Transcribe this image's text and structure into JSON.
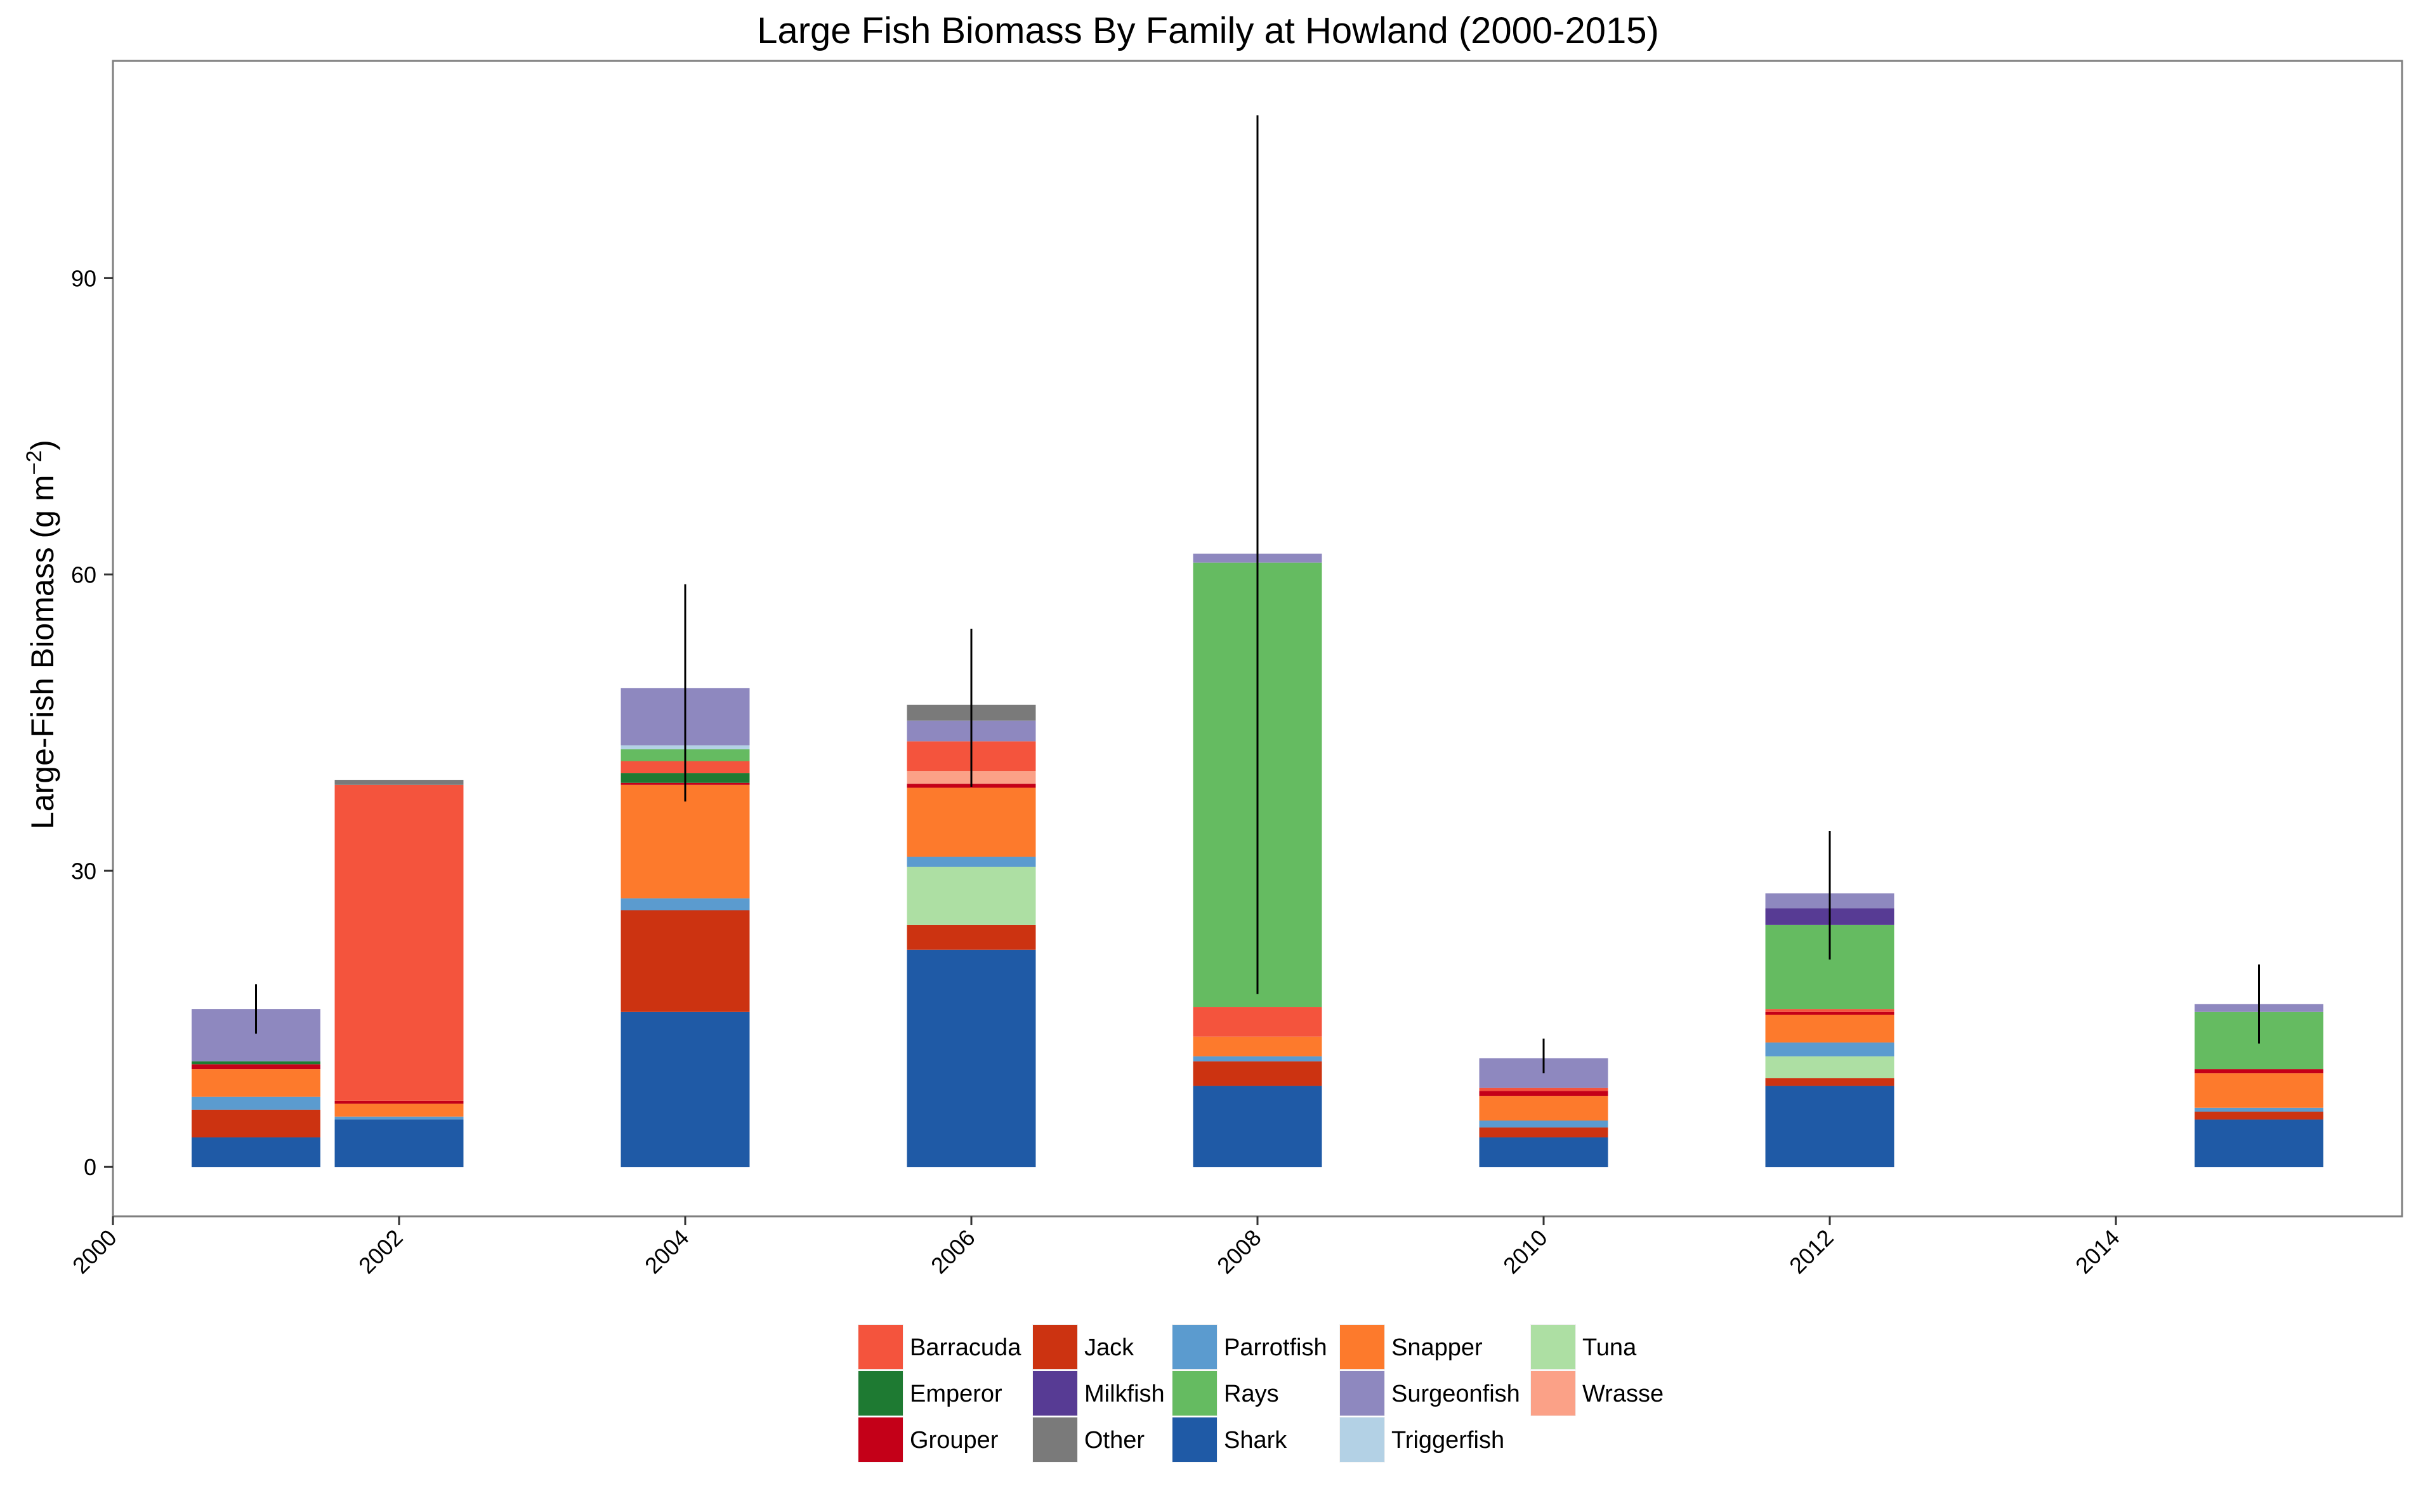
{
  "chart_data": {
    "type": "bar",
    "stacked": true,
    "title": "Large Fish Biomass By Family at Howland (2000-2015)",
    "ylabel": "Large-Fish Biomass (g m",
    "ylabel_sup": "−2",
    "ylabel_close": ")",
    "xlabel": "",
    "x_ticks": [
      2000,
      2002,
      2004,
      2006,
      2008,
      2010,
      2012,
      2014
    ],
    "y_ticks": [
      0,
      30,
      60,
      90
    ],
    "xlim": [
      2000,
      2016
    ],
    "ylim": [
      -5,
      112
    ],
    "bar_width_years": 0.9,
    "grid": false,
    "legend_position": "bottom",
    "x": [
      2001,
      2002,
      2004,
      2006,
      2008,
      2010,
      2012,
      2015
    ],
    "series": [
      {
        "name": "Shark",
        "color": "#1f5aa6",
        "values": [
          3.0,
          4.8,
          15.7,
          22.0,
          8.2,
          3.0,
          8.2,
          4.8
        ]
      },
      {
        "name": "Jack",
        "color": "#cc3311",
        "values": [
          2.8,
          0.0,
          10.3,
          2.5,
          2.5,
          1.0,
          0.8,
          0.8
        ]
      },
      {
        "name": "Tuna",
        "color": "#addfa3",
        "values": [
          0.0,
          0.0,
          0.0,
          5.9,
          0.0,
          0.0,
          2.2,
          0.0
        ]
      },
      {
        "name": "Parrotfish",
        "color": "#5b9bcf",
        "values": [
          1.3,
          0.3,
          1.2,
          1.0,
          0.5,
          0.7,
          1.4,
          0.4
        ]
      },
      {
        "name": "Snapper",
        "color": "#fd7a2c",
        "values": [
          2.8,
          1.3,
          11.5,
          7.0,
          2.0,
          2.5,
          2.8,
          3.5
        ]
      },
      {
        "name": "Grouper",
        "color": "#c40018",
        "values": [
          0.5,
          0.3,
          0.2,
          0.4,
          0.0,
          0.5,
          0.3,
          0.4
        ]
      },
      {
        "name": "Emperor",
        "color": "#1e7a32",
        "values": [
          0.3,
          0.0,
          1.0,
          0.0,
          0.0,
          0.0,
          0.0,
          0.0
        ]
      },
      {
        "name": "Wrasse",
        "color": "#fba187",
        "values": [
          0.0,
          0.0,
          0.0,
          1.3,
          0.0,
          0.0,
          0.0,
          0.0
        ]
      },
      {
        "name": "Barracuda",
        "color": "#f4543d",
        "values": [
          0.0,
          32.0,
          1.2,
          3.0,
          3.0,
          0.3,
          0.3,
          0.0
        ]
      },
      {
        "name": "Rays",
        "color": "#65bb61",
        "values": [
          0.0,
          0.0,
          1.2,
          0.0,
          45.0,
          0.0,
          8.5,
          5.8
        ]
      },
      {
        "name": "Milkfish",
        "color": "#573b94",
        "values": [
          0.0,
          0.0,
          0.0,
          0.0,
          0.0,
          0.0,
          1.7,
          0.0
        ]
      },
      {
        "name": "Triggerfish",
        "color": "#b3d1e5",
        "values": [
          0.0,
          0.0,
          0.4,
          0.0,
          0.0,
          0.0,
          0.0,
          0.0
        ]
      },
      {
        "name": "Surgeonfish",
        "color": "#8e88bf",
        "values": [
          5.3,
          0.0,
          5.8,
          2.1,
          0.9,
          3.0,
          1.5,
          0.8
        ]
      },
      {
        "name": "Other",
        "color": "#7a7a7a",
        "values": [
          0.0,
          0.5,
          0.0,
          1.6,
          0.0,
          0.0,
          0.0,
          0.0
        ]
      }
    ],
    "error_bars": [
      {
        "x": 2001,
        "low": 13.5,
        "high": 18.5
      },
      {
        "x": 2004,
        "low": 37.0,
        "high": 59.0
      },
      {
        "x": 2006,
        "low": 38.5,
        "high": 54.5
      },
      {
        "x": 2008,
        "low": 17.5,
        "high": 106.5
      },
      {
        "x": 2010,
        "low": 9.5,
        "high": 13.0
      },
      {
        "x": 2012,
        "low": 21.0,
        "high": 34.0
      },
      {
        "x": 2015,
        "low": 12.5,
        "high": 20.5
      }
    ],
    "legend_entries": [
      "Barracuda",
      "Emperor",
      "Grouper",
      "Jack",
      "Milkfish",
      "Other",
      "Parrotfish",
      "Rays",
      "Shark",
      "Snapper",
      "Surgeonfish",
      "Triggerfish",
      "Tuna",
      "Wrasse"
    ]
  }
}
